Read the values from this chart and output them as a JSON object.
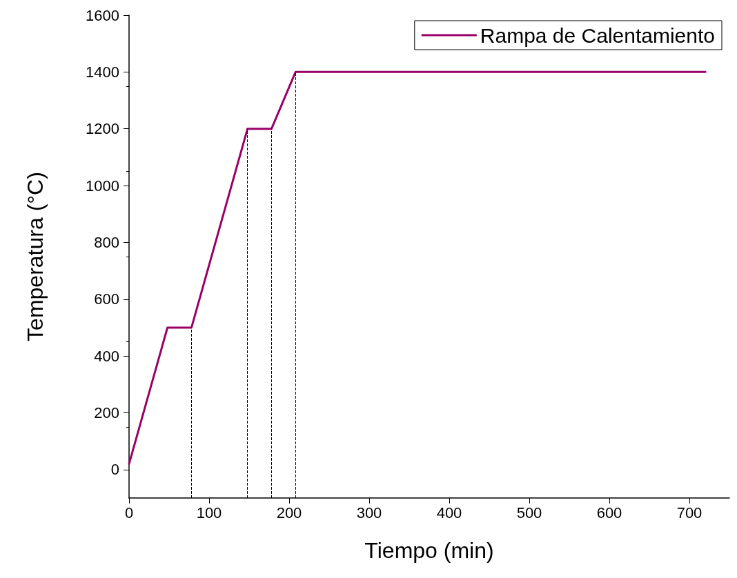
{
  "chart_data": {
    "type": "line",
    "xlabel": "Tiempo (min)",
    "ylabel": "Temperatura (°C)",
    "x": [
      0,
      48,
      78,
      148,
      178,
      208,
      720
    ],
    "series": [
      {
        "name": "Rampa de Calentamiento",
        "color": "#990066",
        "values": [
          20,
          500,
          500,
          1200,
          1200,
          1400,
          1400
        ]
      }
    ],
    "xlim": [
      0,
      750
    ],
    "xticks": [
      0,
      100,
      200,
      300,
      400,
      500,
      600,
      700
    ],
    "ylim": [
      -100,
      1600
    ],
    "yticks": [
      0,
      200,
      400,
      600,
      800,
      1000,
      1200,
      1400,
      1600
    ],
    "ref_lines": [
      {
        "axis": "x",
        "value": 78,
        "color": "#000000",
        "line_style": "dashed"
      },
      {
        "axis": "x",
        "value": 148,
        "color": "#000000",
        "line_style": "dashed"
      },
      {
        "axis": "x",
        "value": 178,
        "color": "#000000",
        "line_style": "dashed"
      },
      {
        "axis": "x",
        "value": 208,
        "color": "#000000",
        "line_style": "dashed"
      }
    ],
    "grid": false,
    "legend": "top right",
    "marker": "none",
    "line_style": "solid"
  }
}
